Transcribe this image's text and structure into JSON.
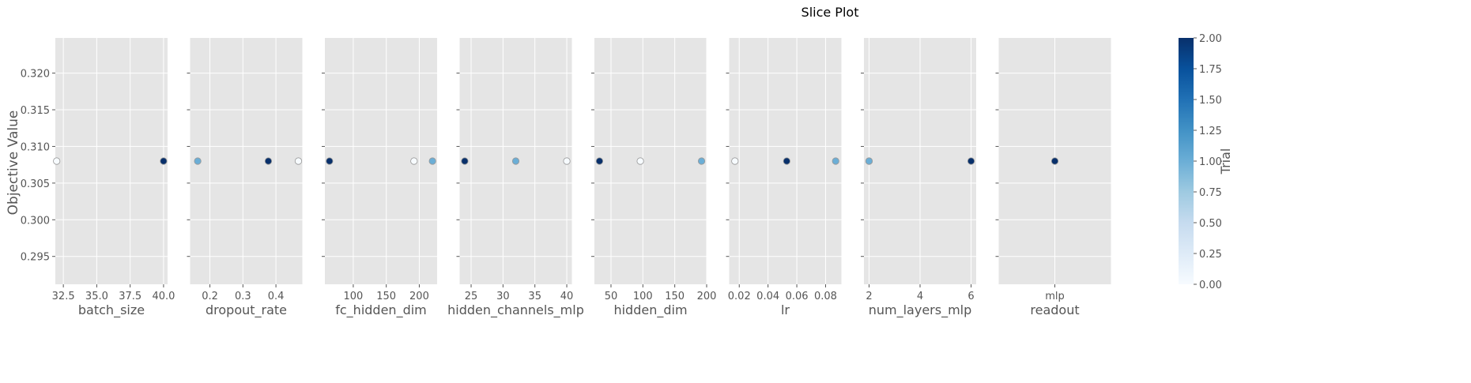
{
  "chart_data": {
    "type": "scatter",
    "title": "Slice Plot",
    "ylabel": "Objective Value",
    "ylim": [
      0.2912,
      0.3248
    ],
    "yticks": [
      "0.295",
      "0.300",
      "0.305",
      "0.310",
      "0.315",
      "0.320"
    ],
    "ytick_values": [
      0.295,
      0.3,
      0.305,
      0.31,
      0.315,
      0.32
    ],
    "grid": true,
    "colorbar": {
      "label": "Trial",
      "range": [
        0,
        2
      ],
      "ticks": [
        "0.00",
        "0.25",
        "0.50",
        "0.75",
        "1.00",
        "1.25",
        "1.50",
        "1.75",
        "2.00"
      ],
      "tick_values": [
        0,
        0.25,
        0.5,
        0.75,
        1.0,
        1.25,
        1.5,
        1.75,
        2.0
      ],
      "colormap": [
        "#f7fbff",
        "#deebf7",
        "#c6dbef",
        "#9ecae1",
        "#6baed6",
        "#4292c6",
        "#2171b5",
        "#08519c",
        "#08306b"
      ]
    },
    "panels": [
      {
        "xlabel": "batch_size",
        "xlim": [
          31.9,
          40.3
        ],
        "xticks": [
          "32.5",
          "35.0",
          "37.5",
          "40.0"
        ],
        "xtick_values": [
          32.5,
          35.0,
          37.5,
          40.0
        ],
        "points": [
          {
            "x": 32,
            "y": 0.308,
            "trial": 0
          },
          {
            "x": 40,
            "y": 0.308,
            "trial": 2
          }
        ]
      },
      {
        "xlabel": "dropout_rate",
        "xlim": [
          0.14,
          0.48
        ],
        "xticks": [
          "0.2",
          "0.3",
          "0.4"
        ],
        "xtick_values": [
          0.2,
          0.3,
          0.4
        ],
        "points": [
          {
            "x": 0.163,
            "y": 0.308,
            "trial": 1
          },
          {
            "x": 0.377,
            "y": 0.308,
            "trial": 2
          },
          {
            "x": 0.468,
            "y": 0.308,
            "trial": 0
          }
        ]
      },
      {
        "xlabel": "fc_hidden_dim",
        "xlim": [
          57,
          227
        ],
        "xticks": [
          "100",
          "150",
          "200"
        ],
        "xtick_values": [
          100,
          150,
          200
        ],
        "points": [
          {
            "x": 64,
            "y": 0.308,
            "trial": 2
          },
          {
            "x": 192,
            "y": 0.308,
            "trial": 0
          },
          {
            "x": 220,
            "y": 0.308,
            "trial": 1
          }
        ]
      },
      {
        "xlabel": "hidden_channels_mlp",
        "xlim": [
          23.2,
          40.8
        ],
        "xticks": [
          "25",
          "30",
          "35",
          "40"
        ],
        "xtick_values": [
          25,
          30,
          35,
          40
        ],
        "points": [
          {
            "x": 24,
            "y": 0.308,
            "trial": 2
          },
          {
            "x": 32,
            "y": 0.308,
            "trial": 1
          },
          {
            "x": 40,
            "y": 0.308,
            "trial": 0
          }
        ]
      },
      {
        "xlabel": "hidden_dim",
        "xlim": [
          24,
          200
        ],
        "xticks": [
          "50",
          "100",
          "150",
          "200"
        ],
        "xtick_values": [
          50,
          100,
          150,
          200
        ],
        "points": [
          {
            "x": 32,
            "y": 0.308,
            "trial": 2
          },
          {
            "x": 96,
            "y": 0.308,
            "trial": 0
          },
          {
            "x": 192,
            "y": 0.308,
            "trial": 1
          }
        ]
      },
      {
        "xlabel": "lr",
        "xlim": [
          0.013,
          0.091
        ],
        "xticks": [
          "0.02",
          "0.04",
          "0.06",
          "0.08"
        ],
        "xtick_values": [
          0.02,
          0.04,
          0.06,
          0.08
        ],
        "points": [
          {
            "x": 0.017,
            "y": 0.308,
            "trial": 0
          },
          {
            "x": 0.053,
            "y": 0.308,
            "trial": 2
          },
          {
            "x": 0.087,
            "y": 0.308,
            "trial": 1
          }
        ]
      },
      {
        "xlabel": "num_layers_mlp",
        "xlim": [
          1.8,
          6.2
        ],
        "xticks": [
          "2",
          "4",
          "6"
        ],
        "xtick_values": [
          2,
          4,
          6
        ],
        "points": [
          {
            "x": 2,
            "y": 0.308,
            "trial": 0
          },
          {
            "x": 2,
            "y": 0.308,
            "trial": 1
          },
          {
            "x": 6,
            "y": 0.308,
            "trial": 2
          }
        ]
      },
      {
        "xlabel": "readout",
        "xlim": [
          -0.5,
          0.5
        ],
        "xticks": [
          "mlp"
        ],
        "xtick_values": [
          0
        ],
        "points": [
          {
            "x": 0,
            "y": 0.308,
            "trial": 2
          }
        ]
      }
    ]
  }
}
